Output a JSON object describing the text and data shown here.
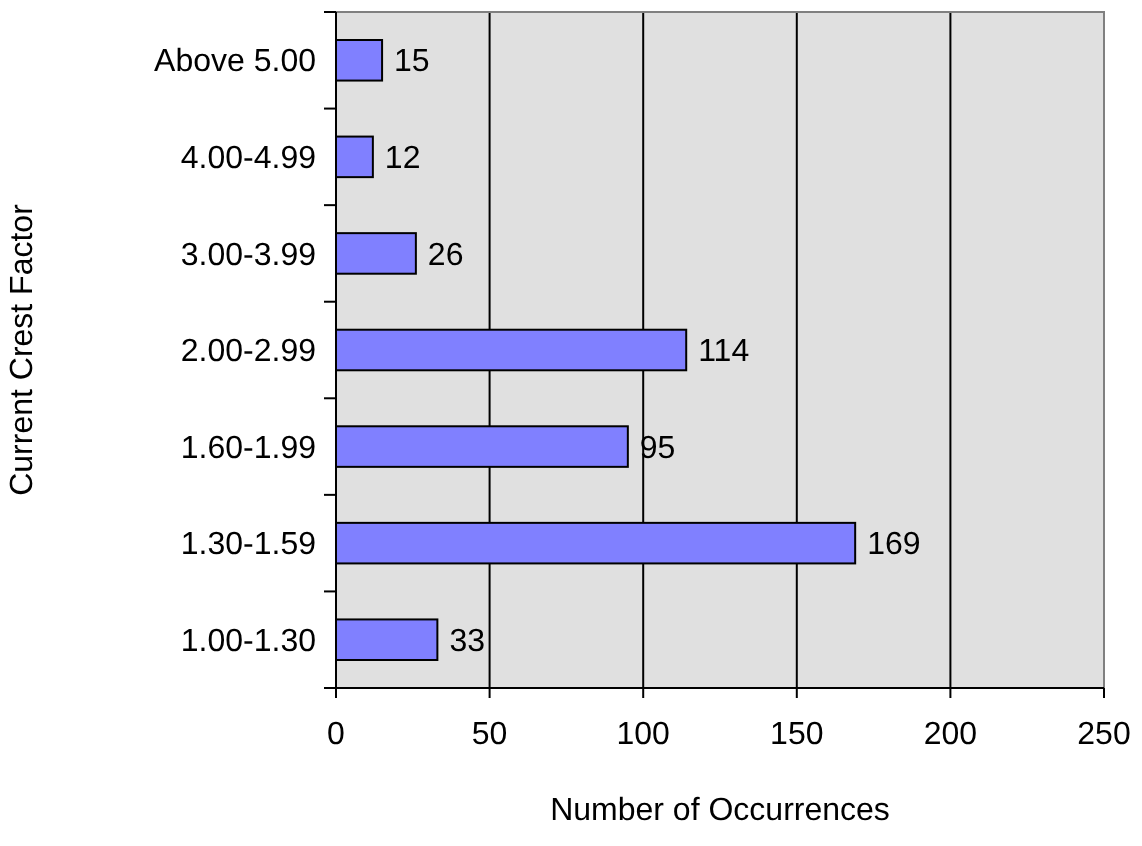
{
  "chart_data": {
    "type": "bar",
    "orientation": "horizontal",
    "xlabel": "Number of Occurrences",
    "ylabel": "Current Crest Factor",
    "categories": [
      "Above 5.00",
      "4.00-4.99",
      "3.00-3.99",
      "2.00-2.99",
      "1.60-1.99",
      "1.30-1.59",
      "1.00-1.30"
    ],
    "values": [
      15,
      12,
      26,
      114,
      95,
      169,
      33
    ],
    "color": "#8080ff",
    "xlim": [
      0,
      250
    ],
    "xticks": [
      0,
      50,
      100,
      150,
      200,
      250
    ],
    "grid": "x",
    "data_labels": true
  }
}
